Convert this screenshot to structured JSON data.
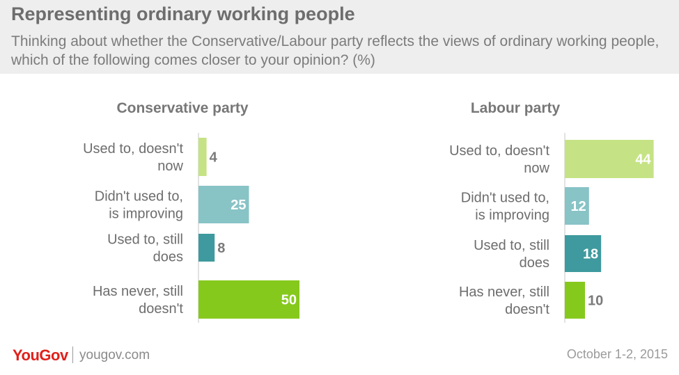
{
  "header": {
    "title": "Representing ordinary working people",
    "subtitle": "Thinking about whether the Conservative/Labour party reflects the views of ordinary working people, which of the following comes closer to your opinion? (%)"
  },
  "footer": {
    "brand": "YouGov",
    "site": "yougov.com",
    "date": "October 1-2, 2015"
  },
  "chart_data": [
    {
      "type": "bar",
      "orientation": "horizontal",
      "title": "Conservative party",
      "categories": [
        "Used to, doesn't now",
        "Didn't used to, is improving",
        "Used to, still does",
        "Has never, still doesn't"
      ],
      "values": [
        4,
        25,
        8,
        50
      ],
      "colors": [
        "#c5e384",
        "#88c3c6",
        "#3e9a9e",
        "#86c91d"
      ],
      "xlim": [
        0,
        50
      ]
    },
    {
      "type": "bar",
      "orientation": "horizontal",
      "title": "Labour party",
      "categories": [
        "Used to, doesn't now",
        "Didn't used to, is improving",
        "Used to, still does",
        "Has never, still doesn't"
      ],
      "values": [
        44,
        12,
        18,
        10
      ],
      "colors": [
        "#c5e384",
        "#88c3c6",
        "#3e9a9e",
        "#86c91d"
      ],
      "xlim": [
        0,
        50
      ]
    }
  ]
}
